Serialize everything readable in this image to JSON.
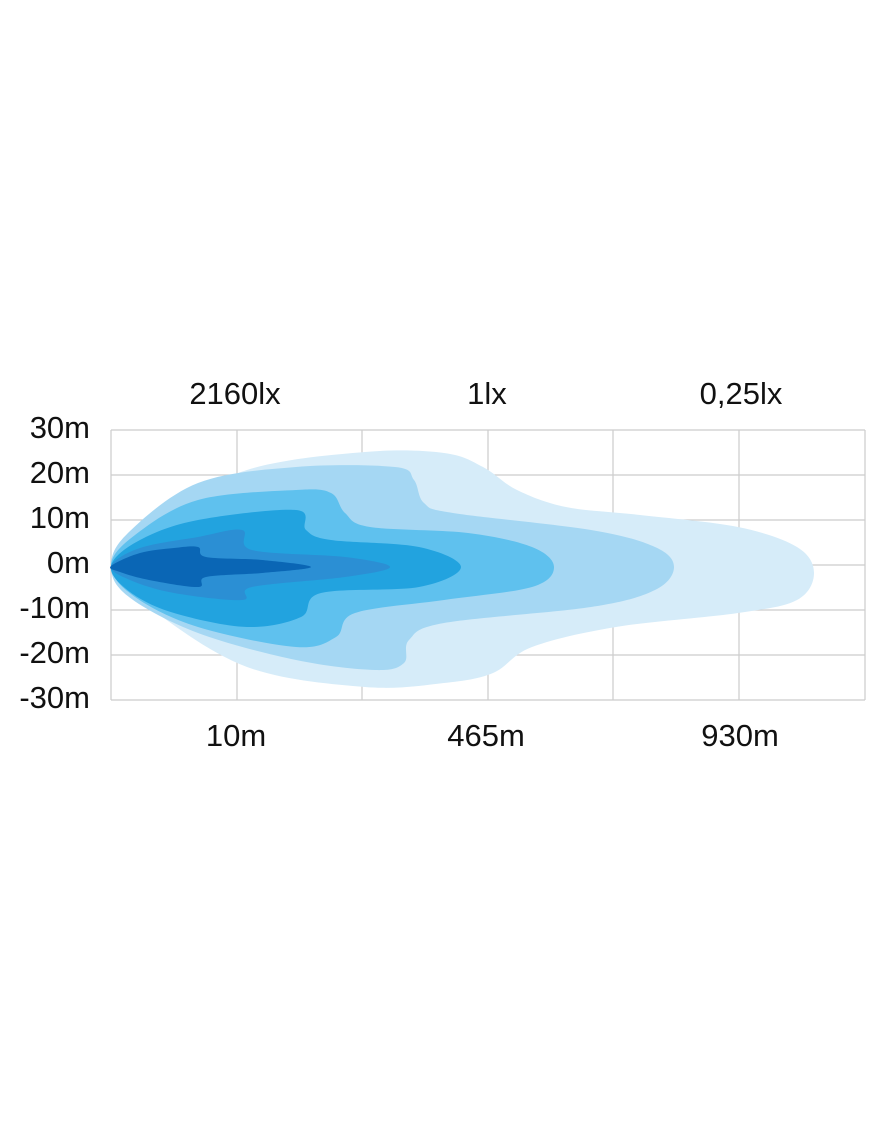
{
  "illuminance_labels": [
    "2160lx",
    "1lx",
    "0,25lx"
  ],
  "distance_labels": [
    "10m",
    "465m",
    "930m"
  ],
  "y_axis_labels": [
    "30m",
    "20m",
    "10m",
    "0m",
    "-10m",
    "-20m",
    "-30m"
  ],
  "layer_colors": [
    "#d6ecf9",
    "#a5d7f3",
    "#5fc1ee",
    "#22a3df",
    "#2b8fd4",
    "#0a66b5"
  ],
  "grid_color": "#cccccc"
}
